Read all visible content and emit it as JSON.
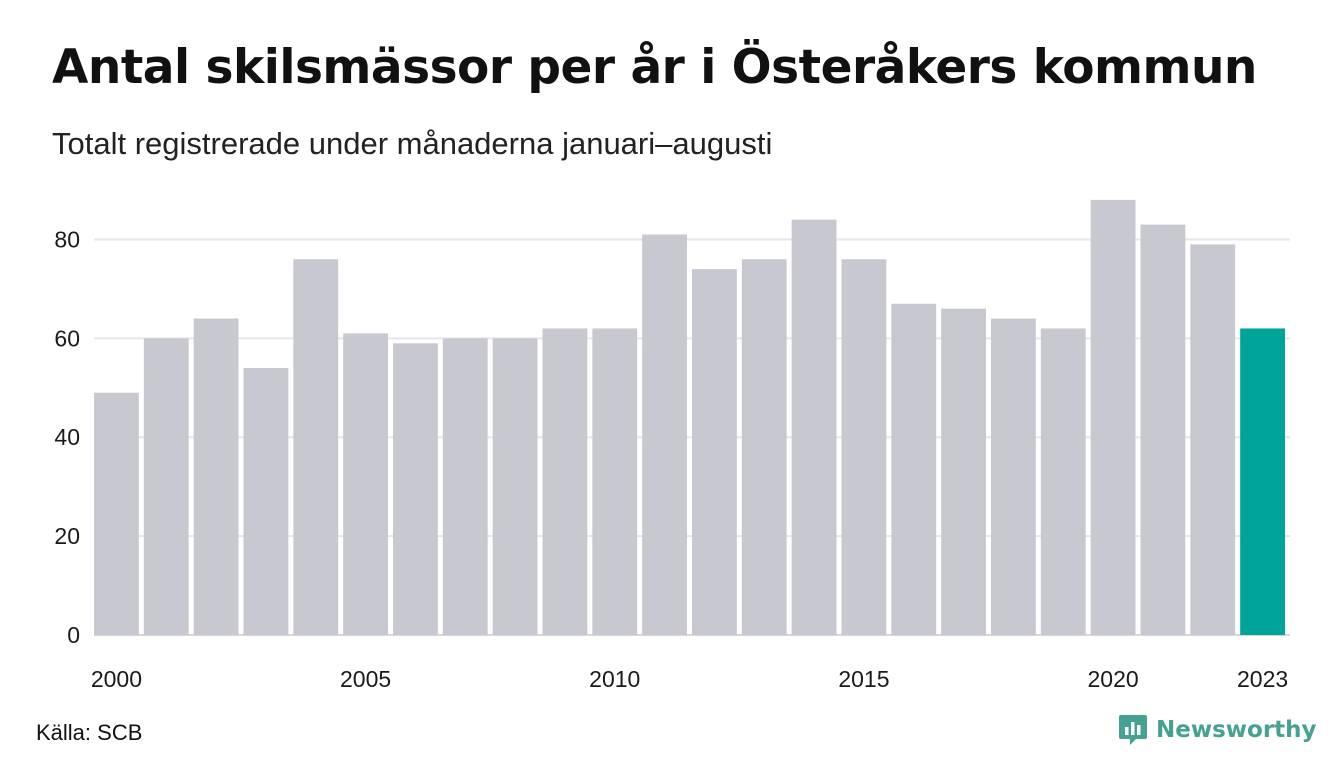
{
  "title": "Antal skilsmässor per år i Österåkers kommun",
  "subtitle": "Totalt registrerade under månaderna januari–augusti",
  "source": "Källa: SCB",
  "brand": {
    "name": "Newsworthy",
    "icon": "newsworthy-logo-icon",
    "color": "#45a192"
  },
  "chart_data": {
    "type": "bar",
    "categories": [
      "2000",
      "2001",
      "2002",
      "2003",
      "2004",
      "2005",
      "2006",
      "2007",
      "2008",
      "2009",
      "2010",
      "2011",
      "2012",
      "2013",
      "2014",
      "2015",
      "2016",
      "2017",
      "2018",
      "2019",
      "2020",
      "2021",
      "2022",
      "2023"
    ],
    "values": [
      49,
      60,
      64,
      54,
      76,
      61,
      59,
      60,
      60,
      62,
      62,
      81,
      74,
      76,
      84,
      76,
      67,
      66,
      64,
      62,
      88,
      83,
      79,
      62
    ],
    "x_tick_labels": [
      "2000",
      "2005",
      "2010",
      "2015",
      "2020",
      "2023"
    ],
    "y_ticks": [
      0,
      20,
      40,
      60,
      80
    ],
    "ylim": [
      0,
      90
    ],
    "grid": true,
    "legend": "none",
    "colors": {
      "default": "#c8c8d0",
      "highlight": "#00a499",
      "grid": "#e6e6ea",
      "baseline": "#d6d6dc"
    },
    "highlight_category": "2023"
  }
}
